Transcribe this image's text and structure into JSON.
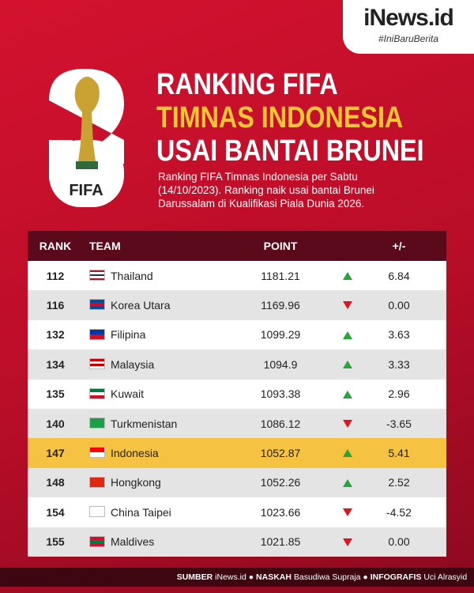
{
  "brand": {
    "name": "iNews.id",
    "tagline": "#IniBaruBerita"
  },
  "logo": {
    "text": "FIFA"
  },
  "header": {
    "title_lines": [
      "RANKING FIFA",
      "TIMNAS INDONESIA",
      "USAI BANTAI BRUNEI"
    ],
    "subtitle": "Ranking FIFA Timnas Indonesia per Sabtu (14/10/2023). Ranking naik usai bantai Brunei Darussalam di Kualifikasi Piala Dunia 2026."
  },
  "table": {
    "columns": [
      "RANK",
      "TEAM",
      "POINT",
      "+/-"
    ],
    "rows": [
      [
        "112",
        "Thailand",
        "1181.21",
        "6.84"
      ],
      [
        "116",
        "Korea Utara",
        "1169.96",
        "0.00"
      ],
      [
        "132",
        "Filipina",
        "1099.29",
        "3.63"
      ],
      [
        "134",
        "Malaysia",
        "1094.9",
        "3.33"
      ],
      [
        "135",
        "Kuwait",
        "1093.38",
        "2.96"
      ],
      [
        "140",
        "Turkmenistan",
        "1086.12",
        "-3.65"
      ],
      [
        "147",
        "Indonesia",
        "1052.87",
        "5.41"
      ],
      [
        "148",
        "Hongkong",
        "1052.26",
        "2.52"
      ],
      [
        "154",
        "China Taipei",
        "1023.66",
        "-4.52"
      ],
      [
        "155",
        "Maldives",
        "1021.85",
        "0.00"
      ]
    ]
  },
  "footer": {
    "items": [
      {
        "label": "SUMBER",
        "value": "iNews.id"
      },
      {
        "label": "NASKAH",
        "value": "Basudiwa Supraja"
      },
      {
        "label": "INFOGRAFIS",
        "value": "Uci Alrasyid"
      }
    ]
  }
}
